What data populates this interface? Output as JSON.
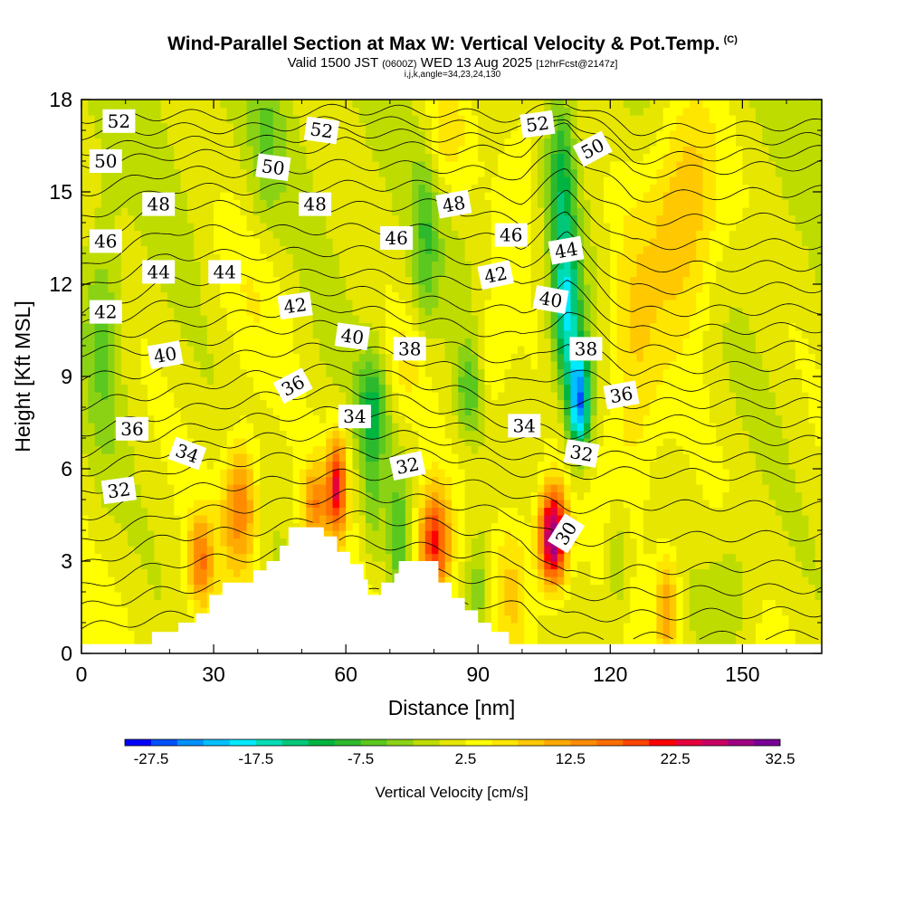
{
  "header": {
    "title": "Wind-Parallel Section at Max W: Vertical Velocity & Pot.Temp.",
    "title_mark": "(C)",
    "subtitle_main": "Valid 1500 JST",
    "subtitle_utc": "(0600Z)",
    "subtitle_date": "WED 13 Aug 2025",
    "subtitle_run": "[12hrFcst@2147z]",
    "indices": "i,j,k,angle=34,23,24,130"
  },
  "chart_data": {
    "type": "heatmap",
    "xlabel": "Distance [nm]",
    "ylabel": "Height [Kft MSL]",
    "xlim": [
      0,
      168
    ],
    "ylim": [
      0,
      18
    ],
    "x_ticks": [
      0,
      30,
      60,
      90,
      120,
      150
    ],
    "x_tick_labels": [
      "0",
      "30",
      "60",
      "90",
      "120",
      "150"
    ],
    "y_ticks": [
      0,
      3,
      6,
      9,
      12,
      15,
      18
    ],
    "y_tick_labels": [
      "0",
      "3",
      "6",
      "9",
      "12",
      "15",
      "18"
    ],
    "colorbar": {
      "title": "Vertical Velocity [cm/s]",
      "min": -30,
      "step": 2.5,
      "labels": [
        "-27.5",
        "-17.5",
        "-7.5",
        "2.5",
        "12.5",
        "22.5",
        "32.5"
      ],
      "label_values": [
        -27.5,
        -17.5,
        -7.5,
        2.5,
        12.5,
        22.5,
        32.5
      ],
      "colors": [
        "#0000ff",
        "#0050ff",
        "#0090ff",
        "#00c0ff",
        "#00eaff",
        "#00dcb4",
        "#00c878",
        "#00b440",
        "#2db92d",
        "#5ac81e",
        "#8cd214",
        "#bedc00",
        "#e6e600",
        "#ffff00",
        "#ffe600",
        "#ffc800",
        "#ffaa00",
        "#ff8c00",
        "#ff6e00",
        "#ff4600",
        "#ff0000",
        "#e6003c",
        "#c80064",
        "#a00082",
        "#780096"
      ]
    },
    "velocity_features": [
      {
        "x": 107,
        "y": 3.8,
        "sx": 3.2,
        "sy": 1.6,
        "w": 30
      },
      {
        "x": 80,
        "y": 3.5,
        "sx": 3.5,
        "sy": 1.8,
        "w": 20
      },
      {
        "x": 58,
        "y": 5.5,
        "sx": 2.2,
        "sy": 1.7,
        "w": 20
      },
      {
        "x": 36,
        "y": 4.8,
        "sx": 4.0,
        "sy": 2.2,
        "w": 14
      },
      {
        "x": 27,
        "y": 3.0,
        "sx": 2.8,
        "sy": 1.5,
        "w": 13
      },
      {
        "x": 53,
        "y": 4.8,
        "sx": 3.0,
        "sy": 1.4,
        "w": 12
      },
      {
        "x": 133,
        "y": 1.6,
        "sx": 2.5,
        "sy": 1.8,
        "w": 11
      },
      {
        "x": 98,
        "y": 2.5,
        "sx": 4.0,
        "sy": 2.5,
        "w": 6
      },
      {
        "x": 137,
        "y": 14.5,
        "sx": 8.0,
        "sy": 3.8,
        "w": 11
      },
      {
        "x": 125,
        "y": 9.0,
        "sx": 6.0,
        "sy": 5.0,
        "w": 7
      },
      {
        "x": 82,
        "y": 17.0,
        "sx": 6.0,
        "sy": 2.0,
        "w": 6
      },
      {
        "x": 38,
        "y": 11.5,
        "sx": 10.0,
        "sy": 3.0,
        "w": 3
      },
      {
        "x": 100,
        "y": 16.0,
        "sx": 5.0,
        "sy": 3.0,
        "w": 5
      },
      {
        "x": 93,
        "y": 9.5,
        "sx": 4.0,
        "sy": 2.0,
        "w": 5
      },
      {
        "x": 74,
        "y": 9.5,
        "sx": 5.0,
        "sy": 1.6,
        "w": 4
      },
      {
        "x": 113,
        "y": 8.2,
        "sx": 2.5,
        "sy": 1.8,
        "w": -26
      },
      {
        "x": 110,
        "y": 11.2,
        "sx": 3.0,
        "sy": 2.6,
        "w": -18
      },
      {
        "x": 109,
        "y": 15.5,
        "sx": 3.0,
        "sy": 2.5,
        "w": -10
      },
      {
        "x": 66,
        "y": 8.0,
        "sx": 3.5,
        "sy": 1.8,
        "w": -11
      },
      {
        "x": 88,
        "y": 8.5,
        "sx": 3.0,
        "sy": 1.5,
        "w": -8
      },
      {
        "x": 72,
        "y": 3.8,
        "sx": 2.5,
        "sy": 2.0,
        "w": -8
      },
      {
        "x": 90,
        "y": 2.2,
        "sx": 3.0,
        "sy": 2.0,
        "w": -7
      },
      {
        "x": 78,
        "y": 13.5,
        "sx": 3.0,
        "sy": 3.5,
        "w": -7
      },
      {
        "x": 5,
        "y": 10.5,
        "sx": 4.0,
        "sy": 4.0,
        "w": -6
      },
      {
        "x": 42,
        "y": 16.5,
        "sx": 4.0,
        "sy": 3.0,
        "w": -4
      },
      {
        "x": 122,
        "y": 3.0,
        "sx": 3.0,
        "sy": 2.0,
        "w": -6
      },
      {
        "x": 148,
        "y": 2.2,
        "sx": 6.0,
        "sy": 2.2,
        "w": -4
      },
      {
        "x": 66,
        "y": 5.0,
        "sx": 2.0,
        "sy": 2.0,
        "w": -5
      }
    ],
    "terrain": [
      [
        0,
        0.3
      ],
      [
        16,
        0.3
      ],
      [
        16,
        0.7
      ],
      [
        22,
        0.7
      ],
      [
        22,
        1.0
      ],
      [
        26,
        1.0
      ],
      [
        26,
        1.3
      ],
      [
        29,
        1.3
      ],
      [
        29,
        1.9
      ],
      [
        32,
        1.9
      ],
      [
        32,
        2.3
      ],
      [
        39,
        2.3
      ],
      [
        39,
        2.7
      ],
      [
        42,
        2.7
      ],
      [
        42,
        3.0
      ],
      [
        45,
        3.0
      ],
      [
        45,
        3.5
      ],
      [
        47,
        3.5
      ],
      [
        47,
        4.1
      ],
      [
        55,
        4.1
      ],
      [
        55,
        3.8
      ],
      [
        58,
        3.8
      ],
      [
        58,
        3.3
      ],
      [
        61,
        3.3
      ],
      [
        61,
        2.9
      ],
      [
        64,
        2.9
      ],
      [
        64,
        2.4
      ],
      [
        65,
        2.4
      ],
      [
        65,
        1.9
      ],
      [
        68,
        1.9
      ],
      [
        68,
        2.3
      ],
      [
        71,
        2.3
      ],
      [
        71,
        2.6
      ],
      [
        72,
        2.6
      ],
      [
        72,
        3.0
      ],
      [
        81,
        3.0
      ],
      [
        81,
        2.3
      ],
      [
        84,
        2.3
      ],
      [
        84,
        1.8
      ],
      [
        87,
        1.8
      ],
      [
        87,
        1.4
      ],
      [
        90,
        1.4
      ],
      [
        90,
        1.0
      ],
      [
        93,
        1.0
      ],
      [
        93,
        0.7
      ],
      [
        97,
        0.7
      ],
      [
        97,
        0.3
      ],
      [
        168,
        0.3
      ]
    ],
    "theta_contour_ticks": [
      [
        0,
        0.8,
        2.8,
        5.2,
        7.2,
        9.8,
        11.0,
        13.3,
        15.8,
        17.4
      ],
      [
        20,
        1.2,
        3.8,
        6.0,
        7.8,
        9.9,
        12.1,
        14.6,
        16.2,
        17.5
      ],
      [
        40,
        1.5,
        4.0,
        6.3,
        8.3,
        10.5,
        12.2,
        14.5,
        16.2,
        17.5
      ],
      [
        60,
        2.0,
        4.5,
        6.5,
        8.6,
        10.7,
        12.4,
        14.5,
        16.6,
        17.7
      ],
      [
        80,
        1.8,
        4.2,
        6.5,
        8.0,
        10.1,
        12.1,
        14.6,
        16.4,
        17.6
      ],
      [
        100,
        1.5,
        3.7,
        5.9,
        7.4,
        9.4,
        11.9,
        14.0,
        16.3,
        17.4
      ],
      [
        110,
        0.5,
        2.5,
        5.8,
        7.1,
        10.2,
        12.9,
        14.9,
        17.2,
        18.0
      ],
      [
        125,
        0.5,
        2.7,
        5.9,
        7.6,
        9.2,
        11.1,
        13.3,
        15.6,
        17.0
      ],
      [
        168,
        0.6,
        2.9,
        5.7,
        7.5,
        9.4,
        11.2,
        13.3,
        15.9,
        17.2
      ]
    ],
    "theta_contour_values": [
      30,
      32,
      34,
      36,
      38,
      40,
      42,
      44,
      46,
      48,
      50,
      52
    ],
    "contour_labels": [
      {
        "text": "52",
        "x": 8.5,
        "y": 17.3,
        "rot": 0
      },
      {
        "text": "50",
        "x": 5.5,
        "y": 16.0,
        "rot": 0
      },
      {
        "text": "48",
        "x": 17.5,
        "y": 14.6,
        "rot": 0
      },
      {
        "text": "46",
        "x": 5.5,
        "y": 13.4,
        "rot": 0
      },
      {
        "text": "44",
        "x": 17.5,
        "y": 12.4,
        "rot": 0
      },
      {
        "text": "44",
        "x": 32.5,
        "y": 12.4,
        "rot": 0
      },
      {
        "text": "42",
        "x": 5.5,
        "y": 11.1,
        "rot": 0
      },
      {
        "text": "40",
        "x": 19.0,
        "y": 9.7,
        "rot": -10
      },
      {
        "text": "36",
        "x": 11.5,
        "y": 7.3,
        "rot": 0
      },
      {
        "text": "34",
        "x": 24.0,
        "y": 6.5,
        "rot": 20
      },
      {
        "text": "32",
        "x": 8.5,
        "y": 5.3,
        "rot": -8
      },
      {
        "text": "52",
        "x": 54.5,
        "y": 17.0,
        "rot": 8
      },
      {
        "text": "50",
        "x": 43.5,
        "y": 15.8,
        "rot": 8
      },
      {
        "text": "48",
        "x": 53.0,
        "y": 14.6,
        "rot": 0
      },
      {
        "text": "46",
        "x": 71.5,
        "y": 13.5,
        "rot": 0
      },
      {
        "text": "48",
        "x": 84.5,
        "y": 14.6,
        "rot": -10
      },
      {
        "text": "42",
        "x": 48.5,
        "y": 11.3,
        "rot": -8
      },
      {
        "text": "40",
        "x": 61.5,
        "y": 10.3,
        "rot": 8
      },
      {
        "text": "38",
        "x": 74.5,
        "y": 9.9,
        "rot": 0
      },
      {
        "text": "36",
        "x": 48.0,
        "y": 8.7,
        "rot": -28
      },
      {
        "text": "34",
        "x": 62.0,
        "y": 7.7,
        "rot": 0
      },
      {
        "text": "32",
        "x": 74.0,
        "y": 6.1,
        "rot": -12
      },
      {
        "text": "46",
        "x": 97.5,
        "y": 13.6,
        "rot": 0
      },
      {
        "text": "42",
        "x": 94.0,
        "y": 12.3,
        "rot": -12
      },
      {
        "text": "52",
        "x": 103.5,
        "y": 17.2,
        "rot": -8
      },
      {
        "text": "50",
        "x": 116.0,
        "y": 16.4,
        "rot": -28
      },
      {
        "text": "44",
        "x": 110.0,
        "y": 13.1,
        "rot": -10
      },
      {
        "text": "40",
        "x": 106.5,
        "y": 11.5,
        "rot": 10
      },
      {
        "text": "38",
        "x": 114.5,
        "y": 9.9,
        "rot": 0
      },
      {
        "text": "36",
        "x": 122.5,
        "y": 8.4,
        "rot": -10
      },
      {
        "text": "34",
        "x": 100.5,
        "y": 7.4,
        "rot": 0
      },
      {
        "text": "32",
        "x": 113.5,
        "y": 6.5,
        "rot": 10
      },
      {
        "text": "30",
        "x": 110.0,
        "y": 3.9,
        "rot": -58
      }
    ]
  }
}
